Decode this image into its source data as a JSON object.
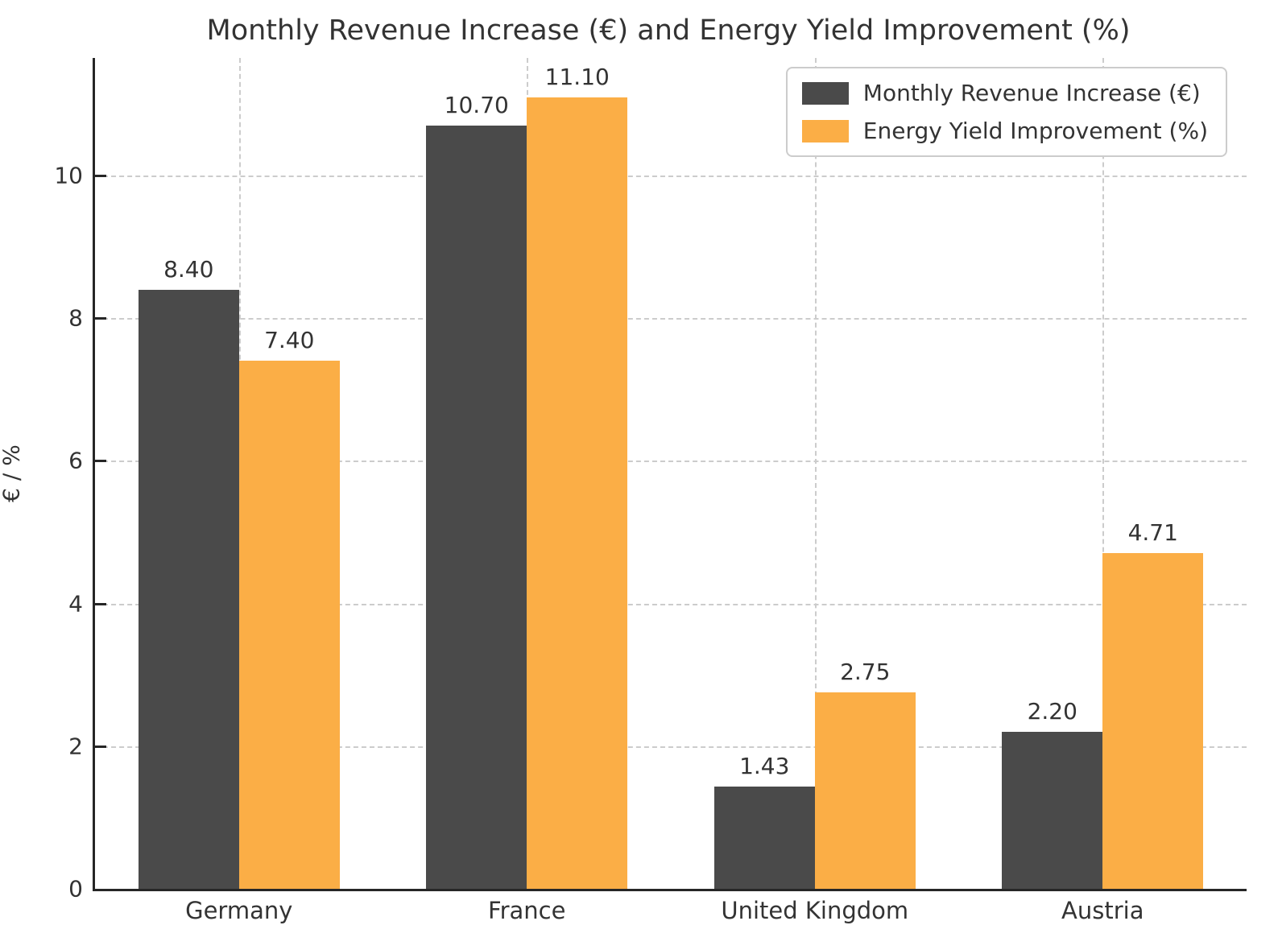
{
  "chart_data": {
    "type": "bar",
    "title": "Monthly Revenue Increase (€) and Energy Yield Improvement (%)",
    "ylabel": "€ / %",
    "xlabel": "",
    "categories": [
      "Germany",
      "France",
      "United Kingdom",
      "Austria"
    ],
    "series": [
      {
        "name": "Monthly Revenue Increase (€)",
        "color": "#4A4A4A",
        "values": [
          8.4,
          10.7,
          1.43,
          2.2
        ],
        "value_labels": [
          "8.40",
          "10.70",
          "1.43",
          "2.20"
        ]
      },
      {
        "name": "Energy Yield Improvement (%)",
        "color": "#FBAE46",
        "values": [
          7.4,
          11.1,
          2.75,
          4.71
        ],
        "value_labels": [
          "7.40",
          "11.10",
          "2.75",
          "4.71"
        ]
      }
    ],
    "yticks": [
      0,
      2,
      4,
      6,
      8,
      10
    ],
    "ylim": [
      0,
      11.65
    ],
    "grid": true,
    "grid_style": "dashed",
    "legend_position": "upper right",
    "colors": {
      "text": "#333333",
      "grid": "#cccccc",
      "spine": "#262626",
      "background": "#ffffff"
    }
  }
}
